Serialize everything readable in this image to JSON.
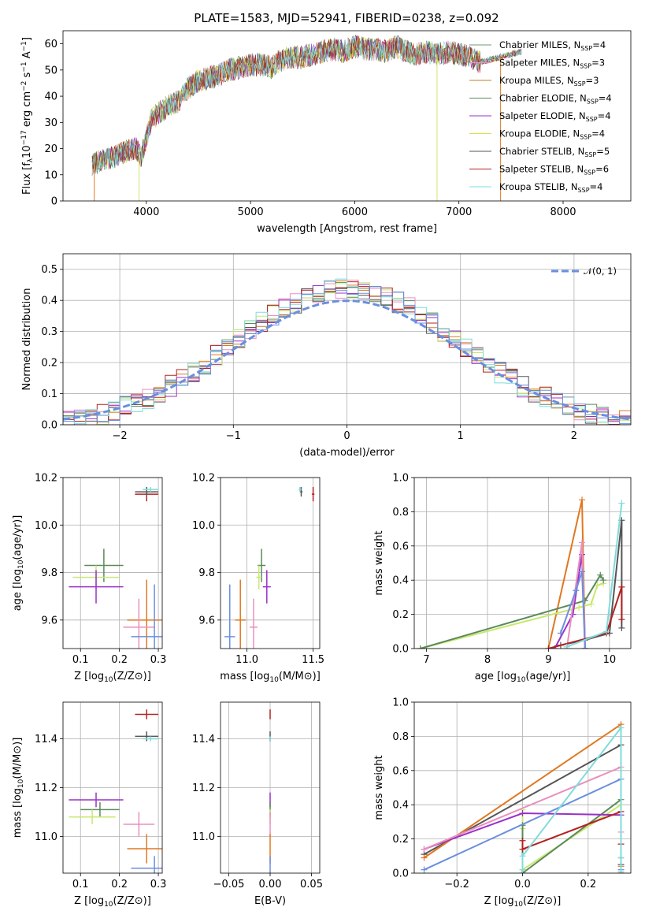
{
  "title": "PLATE=1583, MJD=52941, FIBERID=0238, z=0.092",
  "chart_data": [
    {
      "id": "spectrum",
      "type": "line",
      "xlabel": "wavelength [Angstrom, rest frame]",
      "ylabel": "Flux [f_λ 10^−17 erg cm^−2 s^−1 A^−1]",
      "xlim": [
        3200,
        8650
      ],
      "ylim": [
        0,
        65
      ],
      "xticks": [
        4000,
        5000,
        6000,
        7000,
        8000
      ],
      "yticks": [
        0,
        10,
        20,
        30,
        40,
        50,
        60
      ],
      "grid": false,
      "legend_placement": "right",
      "continuum": {
        "x": [
          3480,
          3600,
          3700,
          3800,
          3900,
          3950,
          4000,
          4050,
          4100,
          4200,
          4300,
          4400,
          4500,
          4600,
          4700,
          4800,
          4900,
          5000,
          5100,
          5200,
          5300,
          5400,
          5500,
          5600,
          5700,
          5800,
          5900,
          6000,
          6100,
          6200,
          6300,
          6400,
          6500,
          6600,
          6700,
          6800,
          6900,
          7000,
          7100,
          7200,
          7300,
          7400,
          7500,
          7600
        ],
        "y": [
          14,
          16,
          17,
          19,
          20,
          17,
          24,
          31,
          33,
          36,
          38,
          43,
          46,
          47,
          48,
          50,
          51,
          52,
          52,
          51,
          54,
          55,
          55,
          56,
          57,
          58,
          57,
          59,
          58,
          58,
          57,
          59,
          57,
          56,
          57,
          56,
          57,
          56,
          55,
          53,
          54,
          55,
          56,
          57
        ]
      },
      "dropouts": [
        {
          "x": 3500,
          "ymin": 0
        },
        {
          "x": 3930,
          "ymin": 0
        },
        {
          "x": 6790,
          "ymin": 0
        },
        {
          "x": 7400,
          "ymin": 0
        }
      ]
    },
    {
      "id": "residuals",
      "type": "line",
      "xlabel": "(data-model)/error",
      "ylabel": "Normed distribution",
      "xlim": [
        -2.5,
        2.5
      ],
      "ylim": [
        0,
        0.55
      ],
      "xticks": [
        -2,
        -1,
        0,
        1,
        2
      ],
      "yticks": [
        0.0,
        0.1,
        0.2,
        0.3,
        0.4,
        0.5
      ],
      "grid": true,
      "legend_placement": "top-right",
      "gaussian_label": "𝒩(0, 1)"
    },
    {
      "id": "age_vs_Z",
      "type": "scatter",
      "xlabel": "Z [log10(Z/Z⊙)]",
      "ylabel": "age  [log10(age/yr)]",
      "xlim": [
        0.055,
        0.31
      ],
      "ylim": [
        9.48,
        10.2
      ],
      "xticks": [
        0.1,
        0.2,
        0.3
      ],
      "yticks": [
        9.6,
        9.8,
        10.0,
        10.2
      ],
      "grid": true,
      "points": [
        {
          "color": "#b22222",
          "x": 0.27,
          "y": 10.13,
          "xerr": 0.03,
          "yerr": 0.03
        },
        {
          "color": "#555555",
          "x": 0.27,
          "y": 10.14,
          "xerr": 0.03,
          "yerr": 0.02
        },
        {
          "color": "#7fdcdc",
          "x": 0.28,
          "y": 10.15,
          "xerr": 0.02,
          "yerr": 0.01
        },
        {
          "color": "#5b8a5b",
          "x": 0.16,
          "y": 9.83,
          "xerr": 0.05,
          "yerr": 0.07
        },
        {
          "color": "#c8e870",
          "x": 0.14,
          "y": 9.78,
          "xerr": 0.06,
          "yerr": 0.05
        },
        {
          "color": "#9b30c8",
          "x": 0.14,
          "y": 9.74,
          "xerr": 0.07,
          "yerr": 0.07
        },
        {
          "color": "#e07820",
          "x": 0.27,
          "y": 9.6,
          "xerr": 0.05,
          "yerr": 0.17
        },
        {
          "color": "#e890c0",
          "x": 0.25,
          "y": 9.57,
          "xerr": 0.04,
          "yerr": 0.12
        },
        {
          "color": "#6a8fdf",
          "x": 0.29,
          "y": 9.53,
          "xerr": 0.06,
          "yerr": 0.22
        }
      ]
    },
    {
      "id": "age_vs_mass",
      "type": "scatter",
      "xlabel": "mass [log10(M/M⊙)]",
      "ylabel": "",
      "xlim": [
        10.8,
        11.55
      ],
      "ylim": [
        9.48,
        10.2
      ],
      "xticks": [
        11.0,
        11.5
      ],
      "yticks": [
        9.6,
        9.8,
        10.0,
        10.2
      ],
      "grid": true,
      "points": [
        {
          "color": "#b22222",
          "x": 11.5,
          "y": 10.13,
          "xerr": 0.01,
          "yerr": 0.03
        },
        {
          "color": "#555555",
          "x": 11.41,
          "y": 10.14,
          "xerr": 0.01,
          "yerr": 0.02
        },
        {
          "color": "#7fdcdc",
          "x": 11.4,
          "y": 10.15,
          "xerr": 0.01,
          "yerr": 0.01
        },
        {
          "color": "#5b8a5b",
          "x": 11.11,
          "y": 9.83,
          "xerr": 0.03,
          "yerr": 0.07
        },
        {
          "color": "#c8e870",
          "x": 11.09,
          "y": 9.78,
          "xerr": 0.02,
          "yerr": 0.05
        },
        {
          "color": "#9b30c8",
          "x": 11.15,
          "y": 9.74,
          "xerr": 0.03,
          "yerr": 0.07
        },
        {
          "color": "#e07820",
          "x": 10.95,
          "y": 9.6,
          "xerr": 0.04,
          "yerr": 0.17
        },
        {
          "color": "#e890c0",
          "x": 11.05,
          "y": 9.57,
          "xerr": 0.03,
          "yerr": 0.12
        },
        {
          "color": "#6a8fdf",
          "x": 10.87,
          "y": 9.53,
          "xerr": 0.04,
          "yerr": 0.22
        }
      ]
    },
    {
      "id": "massweight_vs_age",
      "type": "line",
      "xlabel": "age  [log10(age/yr)]",
      "ylabel": "mass weight",
      "xlim": [
        6.8,
        10.35
      ],
      "ylim": [
        0,
        1.0
      ],
      "xticks": [
        7,
        8,
        9,
        10
      ],
      "yticks": [
        0.0,
        0.2,
        0.4,
        0.6,
        0.8,
        1.0
      ],
      "grid": true,
      "series": [
        {
          "color": "#555555",
          "x": [
            9.2,
            9.6,
            10.0,
            10.2,
            10.2
          ],
          "y": [
            0.02,
            0.05,
            0.09,
            0.75,
            0.12
          ]
        },
        {
          "color": "#e07820",
          "x": [
            9.0,
            9.55,
            9.6
          ],
          "y": [
            0.0,
            0.87,
            0.0
          ]
        },
        {
          "color": "#c8e870",
          "x": [
            6.9,
            9.5,
            9.7,
            9.8,
            9.9
          ],
          "y": [
            0.0,
            0.24,
            0.26,
            0.37,
            0.38
          ]
        },
        {
          "color": "#5b8a5b",
          "x": [
            6.9,
            9.6,
            9.85,
            9.9
          ],
          "y": [
            0.0,
            0.28,
            0.43,
            0.4
          ]
        },
        {
          "color": "#9b30c8",
          "x": [
            9.1,
            9.4,
            9.55,
            9.6
          ],
          "y": [
            0.0,
            0.2,
            0.55,
            0.0
          ]
        },
        {
          "color": "#e890c0",
          "x": [
            9.3,
            9.55,
            9.6
          ],
          "y": [
            0.0,
            0.62,
            0.0
          ]
        },
        {
          "color": "#6a8fdf",
          "x": [
            9.2,
            9.45,
            9.55,
            9.6
          ],
          "y": [
            0.09,
            0.34,
            0.45,
            0.0
          ]
        },
        {
          "color": "#b22222",
          "x": [
            9.0,
            9.95,
            10.2,
            10.2
          ],
          "y": [
            0.0,
            0.09,
            0.36,
            0.17
          ]
        },
        {
          "color": "#7fdcdc",
          "x": [
            9.3,
            9.95,
            10.2
          ],
          "y": [
            0.01,
            0.1,
            0.85
          ]
        }
      ]
    },
    {
      "id": "mass_vs_Z",
      "type": "scatter",
      "xlabel": "Z [log10(Z/Z⊙)]",
      "ylabel": "mass [log10(M/M⊙)]",
      "xlim": [
        0.055,
        0.31
      ],
      "ylim": [
        10.85,
        11.55
      ],
      "xticks": [
        0.1,
        0.2,
        0.3
      ],
      "yticks": [
        11.0,
        11.2,
        11.4
      ],
      "grid": true,
      "points": [
        {
          "color": "#b22222",
          "x": 0.27,
          "y": 11.5,
          "xerr": 0.03,
          "yerr": 0.02
        },
        {
          "color": "#555555",
          "x": 0.27,
          "y": 11.41,
          "xerr": 0.03,
          "yerr": 0.02
        },
        {
          "color": "#7fdcdc",
          "x": 0.28,
          "y": 11.4,
          "xerr": 0.02,
          "yerr": 0.01
        },
        {
          "color": "#9b30c8",
          "x": 0.14,
          "y": 11.15,
          "xerr": 0.07,
          "yerr": 0.03
        },
        {
          "color": "#5b8a5b",
          "x": 0.15,
          "y": 11.11,
          "xerr": 0.05,
          "yerr": 0.03
        },
        {
          "color": "#c8e870",
          "x": 0.13,
          "y": 11.08,
          "xerr": 0.06,
          "yerr": 0.03
        },
        {
          "color": "#e890c0",
          "x": 0.25,
          "y": 11.05,
          "xerr": 0.04,
          "yerr": 0.05
        },
        {
          "color": "#e07820",
          "x": 0.27,
          "y": 10.95,
          "xerr": 0.05,
          "yerr": 0.06
        },
        {
          "color": "#6a8fdf",
          "x": 0.29,
          "y": 10.87,
          "xerr": 0.06,
          "yerr": 0.05
        }
      ]
    },
    {
      "id": "mass_vs_ebv",
      "type": "scatter",
      "xlabel": "E(B-V)",
      "ylabel": "",
      "xlim": [
        -0.06,
        0.06
      ],
      "ylim": [
        10.85,
        11.55
      ],
      "xticks": [
        -0.05,
        0.0,
        0.05
      ],
      "yticks": [
        11.0,
        11.2,
        11.4
      ],
      "grid": true,
      "points": [
        {
          "color": "#b22222",
          "x": 0.0,
          "y": 11.5,
          "xerr": 0.0,
          "yerr": 0.02
        },
        {
          "color": "#555555",
          "x": 0.0,
          "y": 11.41,
          "xerr": 0.0,
          "yerr": 0.02
        },
        {
          "color": "#7fdcdc",
          "x": 0.0,
          "y": 11.4,
          "xerr": 0.0,
          "yerr": 0.01
        },
        {
          "color": "#9b30c8",
          "x": 0.0,
          "y": 11.15,
          "xerr": 0.0,
          "yerr": 0.03
        },
        {
          "color": "#5b8a5b",
          "x": 0.0,
          "y": 11.11,
          "xerr": 0.0,
          "yerr": 0.03
        },
        {
          "color": "#c8e870",
          "x": 0.0,
          "y": 11.08,
          "xerr": 0.0,
          "yerr": 0.03
        },
        {
          "color": "#e890c0",
          "x": 0.0,
          "y": 11.05,
          "xerr": 0.0,
          "yerr": 0.05
        },
        {
          "color": "#e07820",
          "x": 0.0,
          "y": 10.95,
          "xerr": 0.0,
          "yerr": 0.06
        },
        {
          "color": "#6a8fdf",
          "x": 0.0,
          "y": 10.87,
          "xerr": 0.0,
          "yerr": 0.05
        }
      ]
    },
    {
      "id": "massweight_vs_Z",
      "type": "line",
      "xlabel": "Z [log10(Z/Z⊙)]",
      "ylabel": "mass weight",
      "xlim": [
        -0.33,
        0.33
      ],
      "ylim": [
        0,
        1.0
      ],
      "xticks": [
        -0.2,
        0.0,
        0.2
      ],
      "yticks": [
        0.0,
        0.2,
        0.4,
        0.6,
        0.8,
        1.0
      ],
      "grid": true,
      "series": [
        {
          "color": "#555555",
          "x": [
            -0.3,
            0.3,
            0.3,
            0.3
          ],
          "y": [
            0.11,
            0.75,
            0.09,
            0.05
          ]
        },
        {
          "color": "#e07820",
          "x": [
            -0.3,
            0.3,
            0.3
          ],
          "y": [
            0.09,
            0.87,
            0.04
          ]
        },
        {
          "color": "#c8e870",
          "x": [
            0.0,
            0.0,
            0.0,
            0.3,
            0.3
          ],
          "y": [
            0.37,
            0.26,
            0.02,
            0.4,
            0.24
          ]
        },
        {
          "color": "#5b8a5b",
          "x": [
            0.0,
            0.0,
            0.3,
            0.3
          ],
          "y": [
            0.28,
            0.0,
            0.43,
            0.0
          ]
        },
        {
          "color": "#9b30c8",
          "x": [
            -0.3,
            0.0,
            0.3,
            0.3
          ],
          "y": [
            0.14,
            0.35,
            0.34,
            0.0
          ]
        },
        {
          "color": "#e890c0",
          "x": [
            -0.3,
            0.3,
            0.3,
            0.3
          ],
          "y": [
            0.14,
            0.62,
            0.24,
            0.0
          ]
        },
        {
          "color": "#6a8fdf",
          "x": [
            -0.3,
            0.3,
            0.3
          ],
          "y": [
            0.02,
            0.55,
            0.02
          ]
        },
        {
          "color": "#b22222",
          "x": [
            0.0,
            0.0,
            0.3,
            0.3
          ],
          "y": [
            0.19,
            0.14,
            0.36,
            0.17
          ]
        },
        {
          "color": "#7fdcdc",
          "x": [
            0.0,
            0.0,
            0.3,
            0.3,
            0.3
          ],
          "y": [
            0.02,
            0.1,
            0.85,
            0.09,
            0.01
          ]
        }
      ]
    }
  ],
  "legend": [
    {
      "label": "Chabrier MILES, N_SSP=4",
      "color": "#6e9a6e"
    },
    {
      "label": "Salpeter MILES, N_SSP=3",
      "color": "#e890c0"
    },
    {
      "label": "Kroupa MILES, N_SSP=3",
      "color": "#c08020"
    },
    {
      "label": "Chabrier ELODIE, N_SSP=4",
      "color": "#5b8a5b"
    },
    {
      "label": "Salpeter ELODIE, N_SSP=4",
      "color": "#9b30c8"
    },
    {
      "label": "Kroupa ELODIE, N_SSP=4",
      "color": "#d8e040"
    },
    {
      "label": "Chabrier STELIB, N_SSP=5",
      "color": "#555555"
    },
    {
      "label": "Salpeter STELIB, N_SSP=6",
      "color": "#b22222"
    },
    {
      "label": "Kroupa STELIB, N_SSP=4",
      "color": "#7fdcdc"
    }
  ],
  "histogram_colors": [
    "#5b8a5b",
    "#e890c0",
    "#e07820",
    "#9b30c8",
    "#c8e870",
    "#555555",
    "#b22222",
    "#7fdcdc",
    "#6a8fdf"
  ],
  "gaussian_color": "#6a8fdf"
}
